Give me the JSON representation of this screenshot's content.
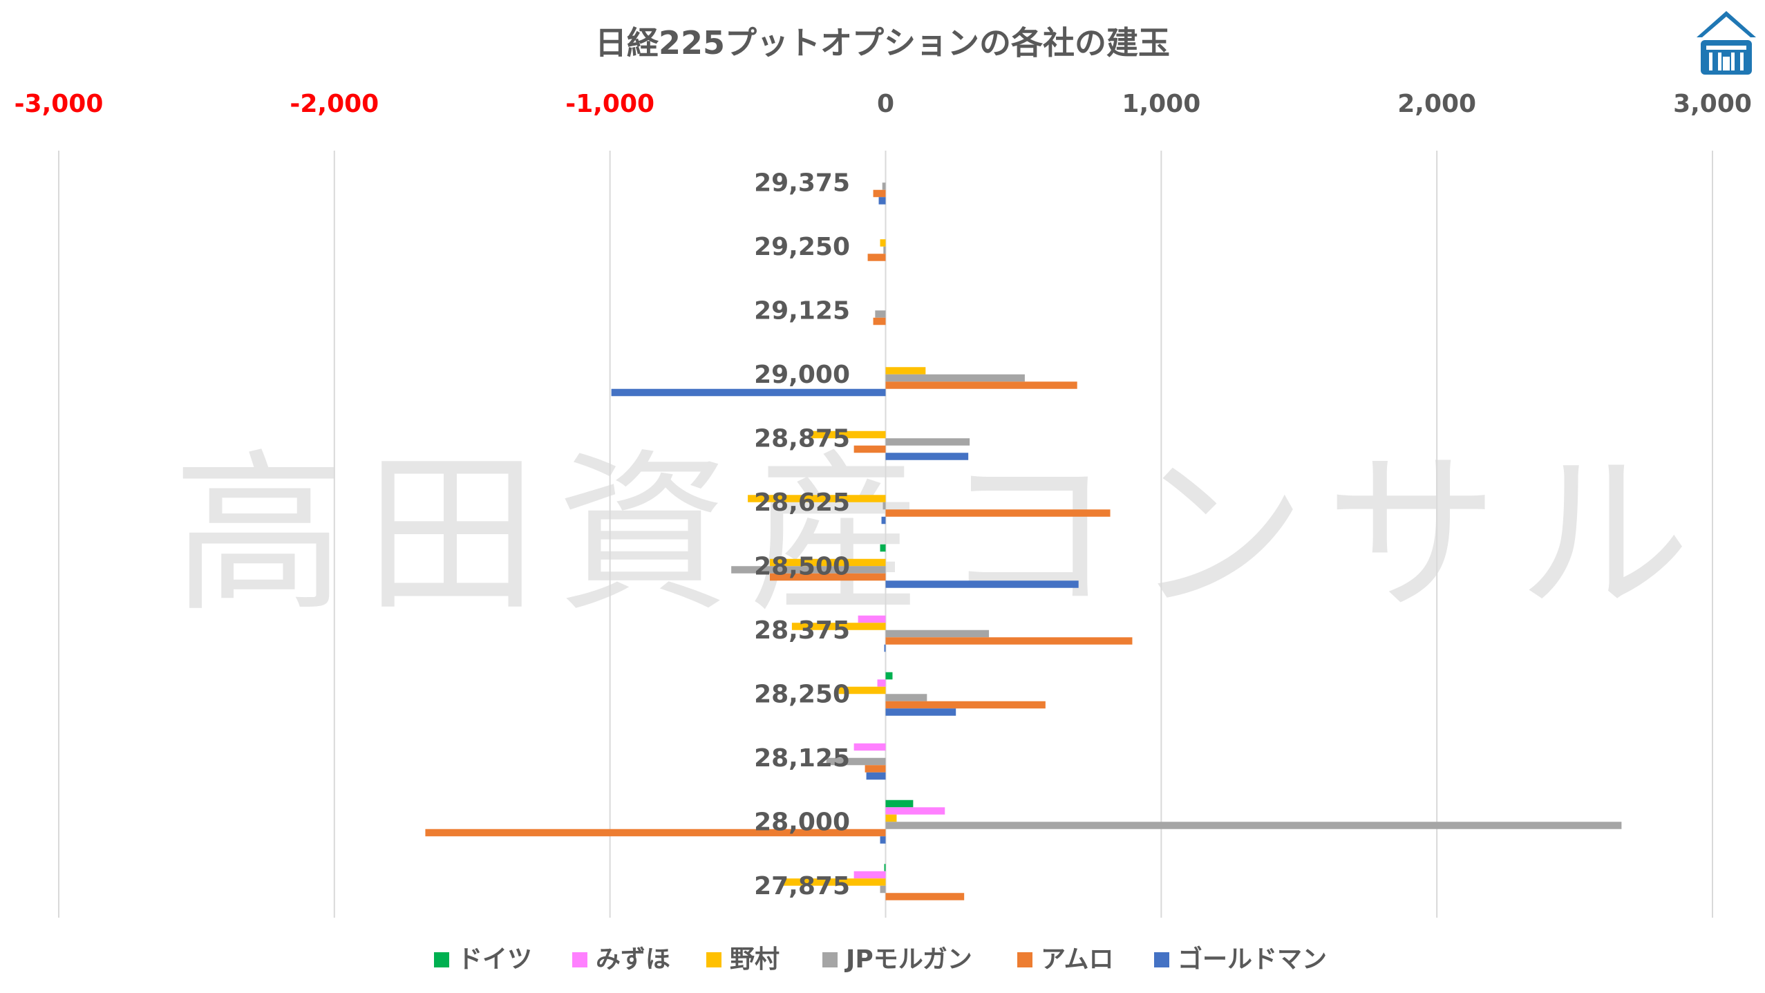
{
  "chart_data": {
    "type": "bar",
    "orientation": "horizontal",
    "title": "日経225プットオプションの各社の建玉",
    "watermark": "高田資産コンサル",
    "logo": "company-logo",
    "xlim": [
      -3000,
      3000
    ],
    "xticks": [
      "-3,000",
      "-2,000",
      "-1,000",
      "0",
      "1,000",
      "2,000",
      "3,000"
    ],
    "xtick_values": [
      -3000,
      -2000,
      -1000,
      0,
      1000,
      2000,
      3000
    ],
    "negative_tick_color": "#ff0000",
    "positive_tick_color": "#595959",
    "categories": [
      "29,375",
      "29,250",
      "29,125",
      "29,000",
      "28,875",
      "28,625",
      "28,500",
      "28,375",
      "28,250",
      "28,125",
      "28,000",
      "27,875"
    ],
    "series": [
      {
        "name": "ドイツ",
        "color": "#00b050",
        "values": [
          0,
          0,
          0,
          0,
          0,
          0,
          -20,
          0,
          25,
          0,
          100,
          -5
        ]
      },
      {
        "name": "みずほ",
        "color": "#ff80ff",
        "values": [
          0,
          0,
          0,
          0,
          0,
          0,
          0,
          -100,
          -30,
          -115,
          215,
          -115
        ]
      },
      {
        "name": "野村",
        "color": "#ffc000",
        "values": [
          0,
          -20,
          0,
          145,
          -270,
          -500,
          -420,
          -340,
          -170,
          0,
          40,
          -375
        ]
      },
      {
        "name": "JPモルガン",
        "color": "#a5a5a5",
        "values": [
          -12,
          -8,
          -38,
          505,
          305,
          -10,
          -560,
          375,
          150,
          -215,
          2670,
          -20
        ]
      },
      {
        "name": "アムロ",
        "color": "#ed7d31",
        "values": [
          -45,
          -65,
          -45,
          695,
          -115,
          815,
          -420,
          895,
          580,
          -75,
          -1670,
          285
        ]
      },
      {
        "name": "ゴールドマン",
        "color": "#4472c4",
        "values": [
          -25,
          0,
          0,
          -995,
          300,
          -15,
          700,
          -5,
          255,
          -70,
          -20,
          0
        ]
      }
    ]
  }
}
